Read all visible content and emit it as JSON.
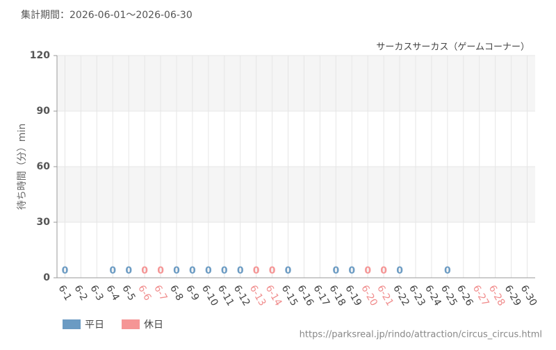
{
  "chart_data": {
    "type": "bar",
    "title": "集計期間：2026-06-01～2026-06-30",
    "subtitle": "サーカスサーカス（ゲームコーナー）",
    "y_label": "待ち時間（分）min",
    "source": "https://parksreal.jp/rindo/attraction/circus_circus.html",
    "categories": [
      "6-1",
      "6-2",
      "6-3",
      "6-4",
      "6-5",
      "6-6",
      "6-7",
      "6-8",
      "6-9",
      "6-10",
      "6-11",
      "6-12",
      "6-13",
      "6-14",
      "6-15",
      "6-16",
      "6-17",
      "6-18",
      "6-19",
      "6-20",
      "6-21",
      "6-22",
      "6-23",
      "6-24",
      "6-25",
      "6-26",
      "6-27",
      "6-28",
      "6-29",
      "6-30"
    ],
    "label_colors": [
      "#444",
      "#444",
      "#444",
      "#444",
      "#444",
      "#f08c8c",
      "#f08c8c",
      "#444",
      "#444",
      "#444",
      "#444",
      "#444",
      "#f08c8c",
      "#f08c8c",
      "#444",
      "#444",
      "#444",
      "#444",
      "#444",
      "#f08c8c",
      "#f08c8c",
      "#444",
      "#444",
      "#444",
      "#444",
      "#444",
      "#f08c8c",
      "#f08c8c",
      "#444",
      "#444"
    ],
    "series": [
      {
        "name": "平日",
        "color": "#6b9bc3",
        "values": [
          0,
          null,
          null,
          0,
          0,
          null,
          null,
          0,
          0,
          0,
          0,
          0,
          null,
          null,
          0,
          null,
          null,
          0,
          0,
          null,
          null,
          0,
          null,
          null,
          0,
          null,
          null,
          null,
          null,
          null
        ]
      },
      {
        "name": "休日",
        "color": "#f59595",
        "values": [
          null,
          null,
          null,
          null,
          null,
          0,
          0,
          null,
          null,
          null,
          null,
          null,
          0,
          0,
          null,
          null,
          null,
          null,
          null,
          0,
          0,
          null,
          null,
          null,
          null,
          null,
          null,
          null,
          null,
          null
        ]
      }
    ],
    "ylim": [
      0,
      120
    ],
    "yticks": [
      0,
      30,
      60,
      90,
      120
    ],
    "grid": true,
    "legend": "bottom-left"
  }
}
